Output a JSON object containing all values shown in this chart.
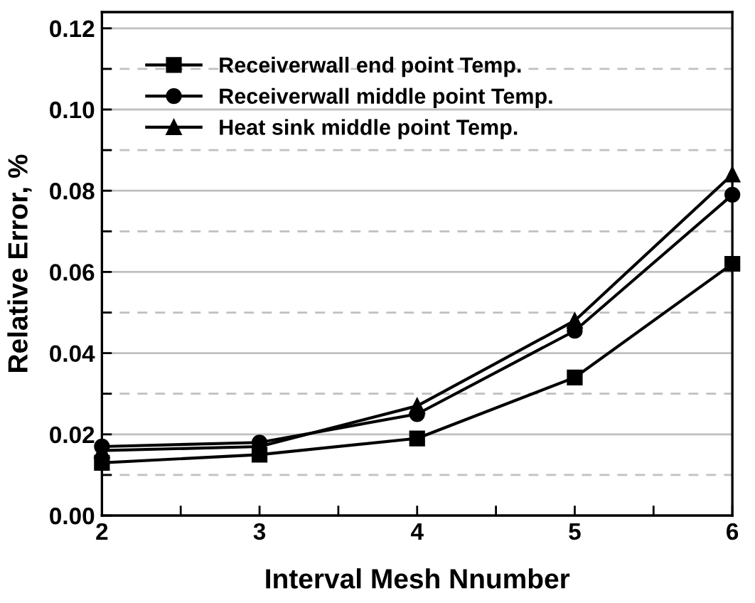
{
  "chart_data": {
    "type": "line",
    "xlabel": "Interval Mesh Nnumber",
    "ylabel": "Relative Error, %",
    "x": [
      2,
      3,
      4,
      5,
      6
    ],
    "series": [
      {
        "name": "Receiverwall end point Temp.",
        "color": "#000000",
        "marker": "square",
        "values": [
          0.013,
          0.015,
          0.019,
          0.034,
          0.062
        ]
      },
      {
        "name": "Receiverwall middle point Temp.",
        "color": "#000000",
        "marker": "circle",
        "values": [
          0.017,
          0.018,
          0.025,
          0.0455,
          0.079
        ]
      },
      {
        "name": "Heat sink middle point Temp.",
        "color": "#000000",
        "marker": "triangle",
        "values": [
          0.016,
          0.017,
          0.027,
          0.048,
          0.084
        ]
      }
    ],
    "xlim": [
      2,
      6
    ],
    "ylim": [
      0,
      0.124
    ],
    "xticks": [
      2,
      {
        "value": 2.5,
        "label": null
      },
      3,
      {
        "value": 3.5,
        "label": null
      },
      4,
      {
        "value": 4.5,
        "label": null
      },
      5,
      {
        "value": 5.5,
        "label": null
      },
      6
    ],
    "yticks": [
      {
        "value": 0,
        "label": "0.00"
      },
      {
        "value": 0.01,
        "label": null
      },
      {
        "value": 0.02,
        "label": "0.02"
      },
      {
        "value": 0.03,
        "label": null
      },
      {
        "value": 0.04,
        "label": "0.04"
      },
      {
        "value": 0.05,
        "label": null
      },
      {
        "value": 0.06,
        "label": "0.06"
      },
      {
        "value": 0.07,
        "label": null
      },
      {
        "value": 0.08,
        "label": "0.08"
      },
      {
        "value": 0.09,
        "label": null
      },
      {
        "value": 0.1,
        "label": "0.10"
      },
      {
        "value": 0.11,
        "label": null
      },
      {
        "value": 0.12,
        "label": "0.12"
      }
    ],
    "grid": "y",
    "legend": "top left",
    "line_style": "solid"
  }
}
